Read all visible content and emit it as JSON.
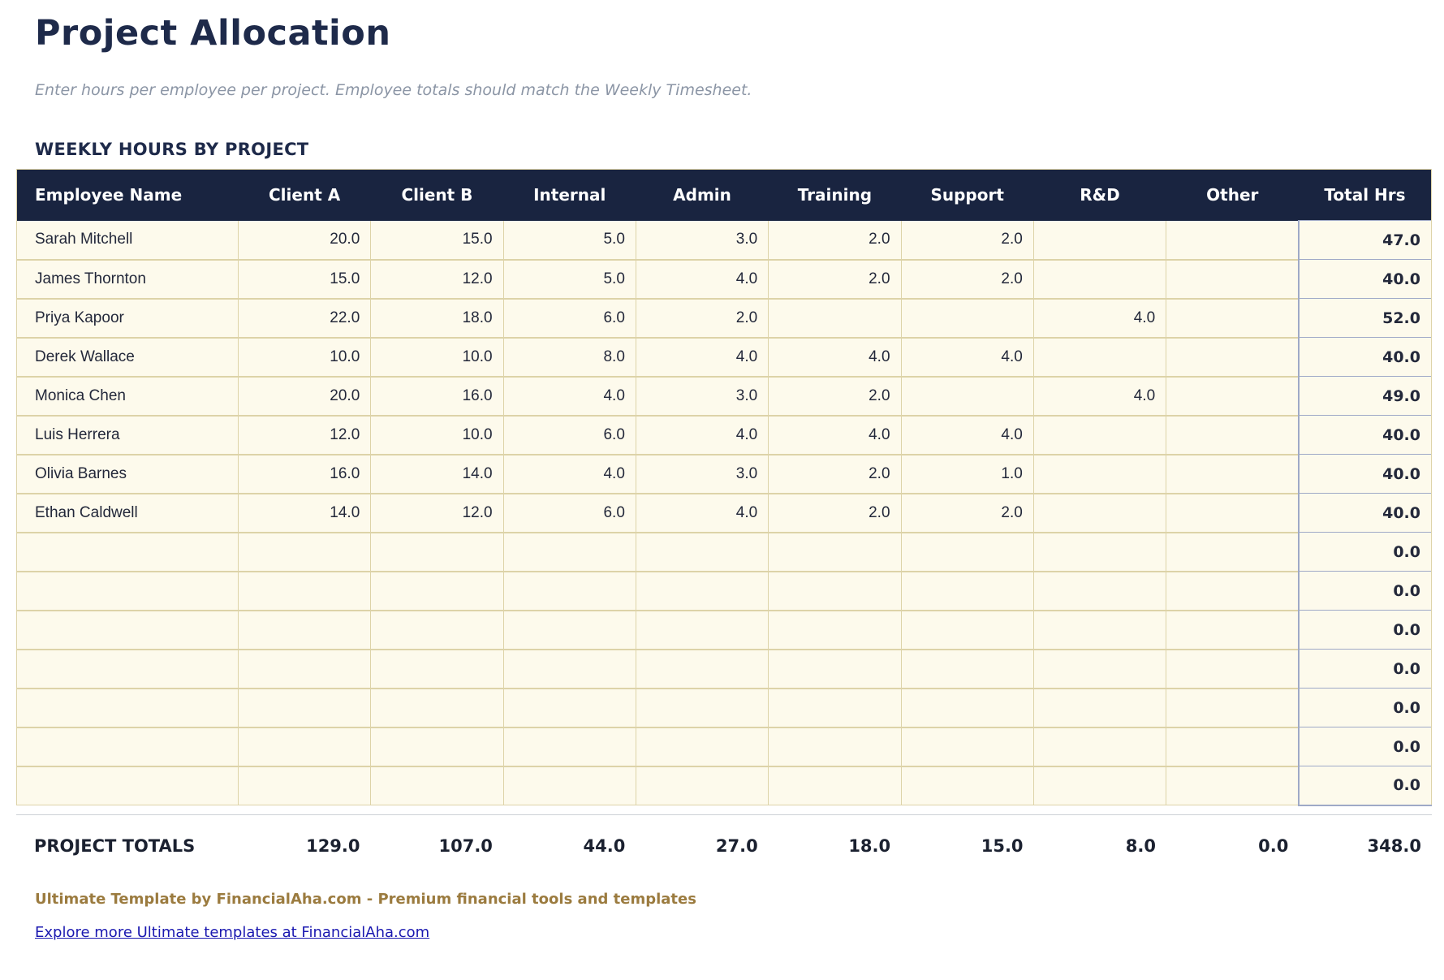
{
  "page": {
    "title": "Project Allocation",
    "subtitle": "Enter hours per employee per project. Employee totals should match the Weekly Timesheet.",
    "section_title": "WEEKLY HOURS BY PROJECT"
  },
  "table": {
    "columns": [
      "Employee Name",
      "Client A",
      "Client B",
      "Internal",
      "Admin",
      "Training",
      "Support",
      "R&D",
      "Other",
      "Total Hrs"
    ],
    "rows": [
      {
        "name": "Sarah Mitchell",
        "values": [
          "20.0",
          "15.0",
          "5.0",
          "3.0",
          "2.0",
          "2.0",
          "",
          ""
        ],
        "total": "47.0"
      },
      {
        "name": "James Thornton",
        "values": [
          "15.0",
          "12.0",
          "5.0",
          "4.0",
          "2.0",
          "2.0",
          "",
          ""
        ],
        "total": "40.0"
      },
      {
        "name": "Priya Kapoor",
        "values": [
          "22.0",
          "18.0",
          "6.0",
          "2.0",
          "",
          "",
          "4.0",
          ""
        ],
        "total": "52.0"
      },
      {
        "name": "Derek Wallace",
        "values": [
          "10.0",
          "10.0",
          "8.0",
          "4.0",
          "4.0",
          "4.0",
          "",
          ""
        ],
        "total": "40.0"
      },
      {
        "name": "Monica Chen",
        "values": [
          "20.0",
          "16.0",
          "4.0",
          "3.0",
          "2.0",
          "",
          "4.0",
          ""
        ],
        "total": "49.0"
      },
      {
        "name": "Luis Herrera",
        "values": [
          "12.0",
          "10.0",
          "6.0",
          "4.0",
          "4.0",
          "4.0",
          "",
          ""
        ],
        "total": "40.0"
      },
      {
        "name": "Olivia Barnes",
        "values": [
          "16.0",
          "14.0",
          "4.0",
          "3.0",
          "2.0",
          "1.0",
          "",
          ""
        ],
        "total": "40.0"
      },
      {
        "name": "Ethan Caldwell",
        "values": [
          "14.0",
          "12.0",
          "6.0",
          "4.0",
          "2.0",
          "2.0",
          "",
          ""
        ],
        "total": "40.0"
      },
      {
        "name": "",
        "values": [
          "",
          "",
          "",
          "",
          "",
          "",
          "",
          ""
        ],
        "total": "0.0"
      },
      {
        "name": "",
        "values": [
          "",
          "",
          "",
          "",
          "",
          "",
          "",
          ""
        ],
        "total": "0.0"
      },
      {
        "name": "",
        "values": [
          "",
          "",
          "",
          "",
          "",
          "",
          "",
          ""
        ],
        "total": "0.0"
      },
      {
        "name": "",
        "values": [
          "",
          "",
          "",
          "",
          "",
          "",
          "",
          ""
        ],
        "total": "0.0"
      },
      {
        "name": "",
        "values": [
          "",
          "",
          "",
          "",
          "",
          "",
          "",
          ""
        ],
        "total": "0.0"
      },
      {
        "name": "",
        "values": [
          "",
          "",
          "",
          "",
          "",
          "",
          "",
          ""
        ],
        "total": "0.0"
      },
      {
        "name": "",
        "values": [
          "",
          "",
          "",
          "",
          "",
          "",
          "",
          ""
        ],
        "total": "0.0"
      }
    ]
  },
  "totals": {
    "label": "PROJECT TOTALS",
    "values": [
      "129.0",
      "107.0",
      "44.0",
      "27.0",
      "18.0",
      "15.0",
      "8.0",
      "0.0",
      "348.0"
    ]
  },
  "footer": {
    "branding": "Ultimate Template by FinancialAha.com - Premium financial tools and templates",
    "link": "Explore more Ultimate templates at FinancialAha.com"
  },
  "colors": {
    "header_bg": "#192440",
    "row_bg": "#fdfaec",
    "grid_border": "#ddd3a8",
    "total_col_bg": "#e9edf7",
    "total_col_border": "#9fa9c7",
    "title_text": "#1e2a4a",
    "subtitle_text": "#8b95a5",
    "footer_brand": "#9b7b3f",
    "link": "#1a18b0"
  }
}
